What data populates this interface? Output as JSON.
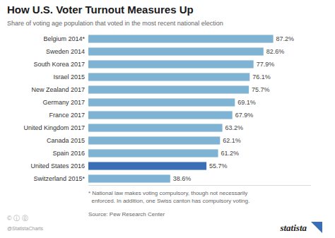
{
  "chart_data": {
    "type": "bar",
    "orientation": "horizontal",
    "title": "How U.S. Voter Turnout Measures Up",
    "subtitle": "Share of voting age population that voted in the most recent national election",
    "categories": [
      "Belgium 2014*",
      "Sweden 2014",
      "South Korea 2017",
      "Israel 2015",
      "New Zealand 2017",
      "Germany 2017",
      "France 2017",
      "United Kingdom 2017",
      "Canada 2015",
      "Spain 2016",
      "United States 2016",
      "Switzerland 2015*"
    ],
    "values": [
      87.2,
      82.6,
      77.9,
      76.1,
      75.7,
      69.1,
      67.9,
      63.2,
      62.1,
      61.2,
      55.7,
      38.6
    ],
    "value_labels": [
      "87.2%",
      "82.6%",
      "77.9%",
      "76.1%",
      "75.7%",
      "69.1%",
      "67.9%",
      "63.2%",
      "62.1%",
      "61.2%",
      "55.7%",
      "38.6%"
    ],
    "colors": [
      "#7fb3d3",
      "#7fb3d3",
      "#7fb3d3",
      "#7fb3d3",
      "#7fb3d3",
      "#7fb3d3",
      "#7fb3d3",
      "#7fb3d3",
      "#7fb3d3",
      "#7fb3d3",
      "#3a6eb5",
      "#7fb3d3"
    ],
    "xlim": [
      0,
      105
    ],
    "data_labels": true,
    "tick_labels": "y",
    "grid": false,
    "annotations": [
      "* National law makes voting compulsory, though not necessarily\n  enforced. In addition, one Swiss canton has compulsory voting.",
      "Source: Pew Research Center",
      "© ⓘ ⓪",
      "@StatistaCharts",
      "statista"
    ]
  }
}
